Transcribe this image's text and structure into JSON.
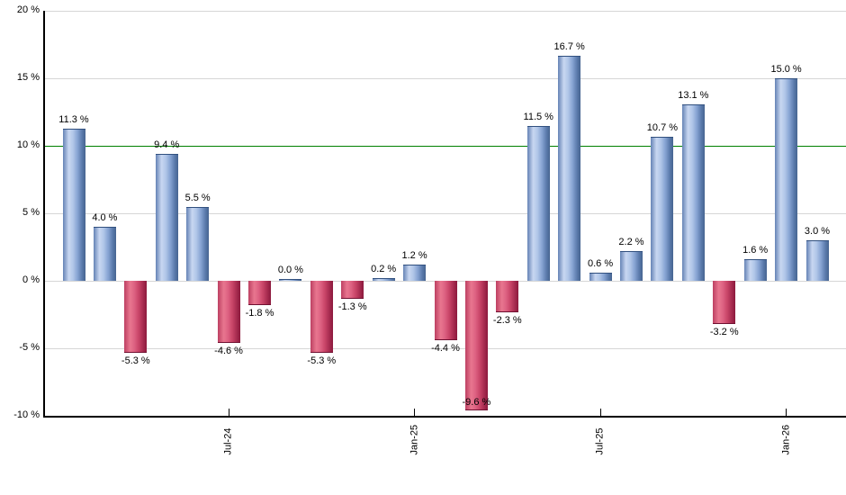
{
  "chart_data": {
    "type": "bar",
    "title": "",
    "xlabel": "",
    "ylabel": "",
    "ylim": [
      -10,
      20
    ],
    "grid": true,
    "legend": false,
    "y_ticks": [
      {
        "value": 20,
        "label": "20 %"
      },
      {
        "value": 15,
        "label": "15 %"
      },
      {
        "value": 10,
        "label": "10 %"
      },
      {
        "value": 5,
        "label": "5 %"
      },
      {
        "value": 0,
        "label": "0 %"
      },
      {
        "value": -5,
        "label": "-5 %"
      },
      {
        "value": -10,
        "label": "-10 %"
      }
    ],
    "x_ticks": [
      {
        "bar_index": 5,
        "label": "Jul-24"
      },
      {
        "bar_index": 11,
        "label": "Jan-25"
      },
      {
        "bar_index": 17,
        "label": "Jul-25"
      },
      {
        "bar_index": 23,
        "label": "Jan-26"
      }
    ],
    "reference_line": {
      "value": 10,
      "color": "#008000"
    },
    "bars": [
      {
        "value": 11.3,
        "label": "11.3 %"
      },
      {
        "value": 4.0,
        "label": "4.0 %"
      },
      {
        "value": -5.3,
        "label": "-5.3 %"
      },
      {
        "value": 9.4,
        "label": "9.4 %"
      },
      {
        "value": 5.5,
        "label": "5.5 %"
      },
      {
        "value": -4.6,
        "label": "-4.6 %"
      },
      {
        "value": -1.8,
        "label": "-1.8 %"
      },
      {
        "value": 0.0,
        "label": "0.0 %"
      },
      {
        "value": -5.3,
        "label": "-5.3 %"
      },
      {
        "value": -1.3,
        "label": "-1.3 %"
      },
      {
        "value": 0.2,
        "label": "0.2 %"
      },
      {
        "value": 1.2,
        "label": "1.2 %"
      },
      {
        "value": -4.4,
        "label": "-4.4 %"
      },
      {
        "value": -9.6,
        "label": "-9.6 %"
      },
      {
        "value": -2.3,
        "label": "-2.3 %"
      },
      {
        "value": 11.5,
        "label": "11.5 %"
      },
      {
        "value": 16.7,
        "label": "16.7 %"
      },
      {
        "value": 0.6,
        "label": "0.6 %"
      },
      {
        "value": 2.2,
        "label": "2.2 %"
      },
      {
        "value": 10.7,
        "label": "10.7 %"
      },
      {
        "value": 13.1,
        "label": "13.1 %"
      },
      {
        "value": -3.2,
        "label": "-3.2 %"
      },
      {
        "value": 1.6,
        "label": "1.6 %"
      },
      {
        "value": 15.0,
        "label": "15.0 %"
      },
      {
        "value": 3.0,
        "label": "3.0 %"
      }
    ],
    "colors": {
      "positive_fill": "#8fabd8",
      "positive_edge": "#466490",
      "negative_fill": "#cf4d6f",
      "negative_edge": "#8c1a3e",
      "grid_line": "#d6d6d6",
      "reference_line": "#008000",
      "axis": "#000000",
      "label_text": "#000000"
    }
  }
}
